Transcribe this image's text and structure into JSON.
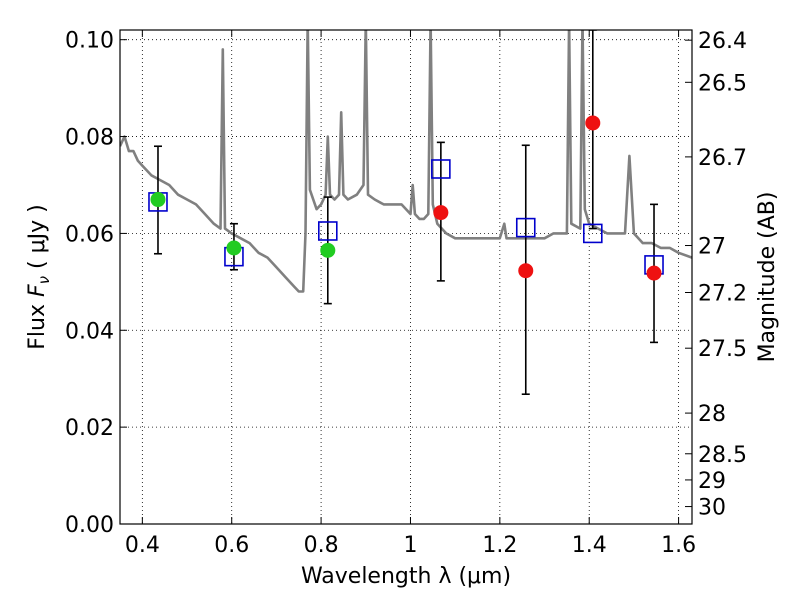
{
  "chart_data": {
    "type": "scatter",
    "xlabel": "Wavelength  λ (μm)",
    "ylabel_parts": [
      "Flux  ",
      "F",
      "ν",
      " (  μJy )"
    ],
    "ylabel_right": "Magnitude (AB)",
    "xlim": [
      0.35,
      1.63
    ],
    "ylim": [
      0.0,
      0.102
    ],
    "grid": true,
    "x_ticks": [
      0.4,
      0.6,
      0.8,
      1.0,
      1.2,
      1.4,
      1.6
    ],
    "x_tick_labels": [
      "0.4",
      "0.6",
      "0.8",
      "1",
      "1.2",
      "1.4",
      "1.6"
    ],
    "y_ticks": [
      0.0,
      0.02,
      0.04,
      0.06,
      0.08,
      0.1
    ],
    "y_tick_labels": [
      "0.00",
      "0.02",
      "0.04",
      "0.06",
      "0.08",
      "0.10"
    ],
    "right_ticks": [
      {
        "label": "26.4",
        "flux": 0.0999
      },
      {
        "label": "26.5",
        "flux": 0.0912
      },
      {
        "label": "26.7",
        "flux": 0.0758
      },
      {
        "label": "27",
        "flux": 0.0575
      },
      {
        "label": "27.2",
        "flux": 0.0478
      },
      {
        "label": "27.5",
        "flux": 0.0363
      },
      {
        "label": "28",
        "flux": 0.0229
      },
      {
        "label": "28.5",
        "flux": 0.0145
      },
      {
        "label": "29",
        "flux": 0.0091
      },
      {
        "label": "30",
        "flux": 0.0036
      }
    ],
    "spectrum": {
      "color": "#808080",
      "x": [
        0.35,
        0.36,
        0.37,
        0.38,
        0.39,
        0.4,
        0.42,
        0.44,
        0.46,
        0.48,
        0.5,
        0.52,
        0.54,
        0.56,
        0.575,
        0.58,
        0.585,
        0.6,
        0.62,
        0.64,
        0.66,
        0.68,
        0.7,
        0.72,
        0.74,
        0.75,
        0.76,
        0.765,
        0.77,
        0.775,
        0.79,
        0.8,
        0.81,
        0.815,
        0.82,
        0.83,
        0.84,
        0.845,
        0.85,
        0.86,
        0.88,
        0.895,
        0.9,
        0.905,
        0.92,
        0.94,
        0.96,
        0.98,
        1.0,
        1.005,
        1.01,
        1.02,
        1.03,
        1.04,
        1.045,
        1.05,
        1.06,
        1.08,
        1.1,
        1.12,
        1.14,
        1.16,
        1.18,
        1.2,
        1.21,
        1.215,
        1.22,
        1.24,
        1.26,
        1.28,
        1.3,
        1.32,
        1.34,
        1.35,
        1.355,
        1.36,
        1.38,
        1.385,
        1.39,
        1.4,
        1.42,
        1.44,
        1.46,
        1.48,
        1.49,
        1.5,
        1.52,
        1.54,
        1.56,
        1.58,
        1.6,
        1.63
      ],
      "y": [
        0.078,
        0.08,
        0.077,
        0.077,
        0.075,
        0.074,
        0.072,
        0.071,
        0.07,
        0.068,
        0.067,
        0.066,
        0.064,
        0.062,
        0.061,
        0.098,
        0.061,
        0.06,
        0.059,
        0.058,
        0.056,
        0.055,
        0.053,
        0.051,
        0.049,
        0.048,
        0.048,
        0.06,
        0.104,
        0.069,
        0.065,
        0.066,
        0.068,
        0.08,
        0.068,
        0.067,
        0.068,
        0.085,
        0.068,
        0.067,
        0.068,
        0.07,
        0.104,
        0.068,
        0.067,
        0.066,
        0.066,
        0.066,
        0.064,
        0.07,
        0.064,
        0.063,
        0.063,
        0.064,
        0.104,
        0.066,
        0.062,
        0.06,
        0.059,
        0.059,
        0.059,
        0.059,
        0.059,
        0.059,
        0.062,
        0.059,
        0.059,
        0.059,
        0.059,
        0.059,
        0.059,
        0.06,
        0.06,
        0.06,
        0.104,
        0.062,
        0.061,
        0.104,
        0.065,
        0.062,
        0.061,
        0.06,
        0.06,
        0.06,
        0.076,
        0.06,
        0.058,
        0.058,
        0.057,
        0.057,
        0.056,
        0.055
      ]
    },
    "blue_squares": {
      "color": "#0000cc",
      "points": [
        {
          "x": 0.435,
          "y": 0.0665
        },
        {
          "x": 0.605,
          "y": 0.0552
        },
        {
          "x": 0.815,
          "y": 0.0605
        },
        {
          "x": 1.068,
          "y": 0.0733
        },
        {
          "x": 1.258,
          "y": 0.0612
        },
        {
          "x": 1.408,
          "y": 0.06
        },
        {
          "x": 1.545,
          "y": 0.0535
        }
      ]
    },
    "green_points": {
      "color": "#22cc22",
      "points": [
        {
          "x": 0.435,
          "y": 0.067,
          "err_low": 0.0558,
          "err_high": 0.078
        },
        {
          "x": 0.605,
          "y": 0.057,
          "err_low": 0.0525,
          "err_high": 0.062
        },
        {
          "x": 0.815,
          "y": 0.0565,
          "err_low": 0.0455,
          "err_high": 0.0675
        }
      ]
    },
    "red_points": {
      "color": "#ee1111",
      "points": [
        {
          "x": 1.068,
          "y": 0.0643,
          "err_low": 0.0502,
          "err_high": 0.0788
        },
        {
          "x": 1.258,
          "y": 0.0523,
          "err_low": 0.0268,
          "err_high": 0.0782
        },
        {
          "x": 1.408,
          "y": 0.0828,
          "err_low": 0.061,
          "err_high": 0.102
        },
        {
          "x": 1.545,
          "y": 0.0518,
          "err_low": 0.0375,
          "err_high": 0.066
        }
      ]
    }
  }
}
